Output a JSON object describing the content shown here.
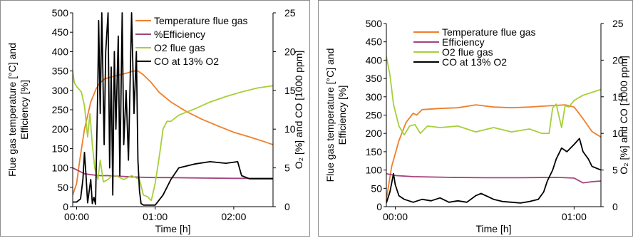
{
  "chart_data": [
    {
      "type": "line",
      "xlabel": "Time [h]",
      "ylabel_left": [
        "Flue gas temperature [°C] and",
        "Efficiency [%]"
      ],
      "ylabel_right": "O₂ [%] and CO [1000 ppm]",
      "xlim": [
        -0.05,
        2.5
      ],
      "ylim_left": [
        0,
        500
      ],
      "ylim_right": [
        0,
        25
      ],
      "x_ticks": [
        {
          "value": 0,
          "label": "00:00"
        },
        {
          "value": 1,
          "label": "01:00"
        },
        {
          "value": 2,
          "label": "02:00"
        }
      ],
      "yticks_left": [
        0,
        50,
        100,
        150,
        200,
        250,
        300,
        350,
        400,
        450,
        500
      ],
      "yticks_right": [
        0,
        5,
        10,
        15,
        20,
        25
      ],
      "legend_position": "top-right",
      "series": [
        {
          "name": "Temperature flue gas",
          "color": "#f07f2a",
          "axis": "left",
          "points": [
            [
              -0.05,
              30
            ],
            [
              0,
              60
            ],
            [
              0.04,
              120
            ],
            [
              0.1,
              200
            ],
            [
              0.18,
              270
            ],
            [
              0.25,
              305
            ],
            [
              0.3,
              320
            ],
            [
              0.36,
              330
            ],
            [
              0.45,
              335
            ],
            [
              0.55,
              340
            ],
            [
              0.65,
              345
            ],
            [
              0.72,
              350
            ],
            [
              0.78,
              350
            ],
            [
              0.85,
              340
            ],
            [
              0.95,
              320
            ],
            [
              1.05,
              295
            ],
            [
              1.2,
              270
            ],
            [
              1.4,
              245
            ],
            [
              1.6,
              225
            ],
            [
              1.8,
              208
            ],
            [
              2.0,
              192
            ],
            [
              2.2,
              180
            ],
            [
              2.4,
              167
            ],
            [
              2.5,
              160
            ]
          ]
        },
        {
          "name": "%Efficiency",
          "color": "#a3447e",
          "axis": "left",
          "points": [
            [
              -0.05,
              100
            ],
            [
              0,
              95
            ],
            [
              0.05,
              90
            ],
            [
              0.1,
              85
            ],
            [
              0.2,
              82
            ],
            [
              0.3,
              80
            ],
            [
              0.4,
              80
            ],
            [
              0.6,
              78
            ],
            [
              0.8,
              76
            ],
            [
              1.0,
              75
            ],
            [
              1.2,
              75
            ],
            [
              1.5,
              74
            ],
            [
              2.0,
              73
            ],
            [
              2.5,
              73
            ]
          ]
        },
        {
          "name": "O2 flue gas",
          "color": "#a6cf3a",
          "axis": "right",
          "points": [
            [
              -0.05,
              17.5
            ],
            [
              -0.03,
              16
            ],
            [
              0,
              15.5
            ],
            [
              0.06,
              14.8
            ],
            [
              0.1,
              13
            ],
            [
              0.14,
              9
            ],
            [
              0.17,
              12
            ],
            [
              0.2,
              8
            ],
            [
              0.23,
              5
            ],
            [
              0.27,
              3.5
            ],
            [
              0.3,
              6
            ],
            [
              0.34,
              3.2
            ],
            [
              0.4,
              3.5
            ],
            [
              0.45,
              4
            ],
            [
              0.5,
              4
            ],
            [
              0.6,
              3.5
            ],
            [
              0.7,
              4
            ],
            [
              0.8,
              3.5
            ],
            [
              0.85,
              1.5
            ],
            [
              0.9,
              1.3
            ],
            [
              0.95,
              0.8
            ],
            [
              1.0,
              3
            ],
            [
              1.03,
              5
            ],
            [
              1.06,
              7
            ],
            [
              1.1,
              10
            ],
            [
              1.15,
              11
            ],
            [
              1.2,
              11
            ],
            [
              1.3,
              11.8
            ],
            [
              1.5,
              12.6
            ],
            [
              1.7,
              13.5
            ],
            [
              1.9,
              14.2
            ],
            [
              2.1,
              14.8
            ],
            [
              2.3,
              15.3
            ],
            [
              2.5,
              15.6
            ]
          ]
        },
        {
          "name": "CO at 13% O2",
          "color": "#000000",
          "axis": "right",
          "points": [
            [
              -0.05,
              0.6
            ],
            [
              0,
              0.6
            ],
            [
              0.05,
              1
            ],
            [
              0.08,
              3.5
            ],
            [
              0.1,
              7
            ],
            [
              0.12,
              4
            ],
            [
              0.14,
              0.5
            ],
            [
              0.16,
              2
            ],
            [
              0.18,
              3.5
            ],
            [
              0.2,
              0.4
            ],
            [
              0.22,
              1.2
            ],
            [
              0.24,
              0.3
            ],
            [
              0.27,
              16
            ],
            [
              0.28,
              24
            ],
            [
              0.3,
              12
            ],
            [
              0.32,
              25
            ],
            [
              0.35,
              8
            ],
            [
              0.37,
              20
            ],
            [
              0.4,
              25
            ],
            [
              0.42,
              5
            ],
            [
              0.44,
              18
            ],
            [
              0.46,
              1.5
            ],
            [
              0.48,
              20
            ],
            [
              0.5,
              10
            ],
            [
              0.53,
              22
            ],
            [
              0.55,
              4
            ],
            [
              0.58,
              25
            ],
            [
              0.6,
              8
            ],
            [
              0.63,
              15
            ],
            [
              0.66,
              6
            ],
            [
              0.7,
              25
            ],
            [
              0.73,
              12
            ],
            [
              0.76,
              20
            ],
            [
              0.78,
              6
            ],
            [
              0.8,
              2
            ],
            [
              0.82,
              0.4
            ],
            [
              0.85,
              0.2
            ],
            [
              1.0,
              0.2
            ],
            [
              1.1,
              1.5
            ],
            [
              1.2,
              3.5
            ],
            [
              1.3,
              5
            ],
            [
              1.5,
              5.5
            ],
            [
              1.7,
              5.8
            ],
            [
              1.9,
              5.6
            ],
            [
              2.05,
              5.8
            ],
            [
              2.1,
              4
            ],
            [
              2.2,
              3.6
            ],
            [
              2.5,
              3.6
            ]
          ]
        }
      ]
    },
    {
      "type": "line",
      "xlabel": "Time [h]",
      "ylabel_left": [
        "Flue gas temperature [°C] and",
        "Efficiency [%]"
      ],
      "ylabel_right": "O₂ [%] and CO [1000 ppm]",
      "xlim": [
        -0.05,
        1.15
      ],
      "ylim_left": [
        0,
        500
      ],
      "ylim_right": [
        0,
        25
      ],
      "x_ticks": [
        {
          "value": 0,
          "label": "00:00"
        },
        {
          "value": 1,
          "label": "01:00"
        }
      ],
      "yticks_left": [
        0,
        50,
        100,
        150,
        200,
        250,
        300,
        350,
        400,
        450,
        500
      ],
      "yticks_right": [
        0,
        5,
        10,
        15,
        20,
        25
      ],
      "legend_position": "top-left",
      "series": [
        {
          "name": "Temperature flue gas",
          "color": "#f07f2a",
          "axis": "left",
          "points": [
            [
              -0.05,
              20
            ],
            [
              -0.02,
              110
            ],
            [
              0.02,
              180
            ],
            [
              0.06,
              230
            ],
            [
              0.1,
              255
            ],
            [
              0.12,
              250
            ],
            [
              0.15,
              265
            ],
            [
              0.25,
              268
            ],
            [
              0.35,
              270
            ],
            [
              0.45,
              278
            ],
            [
              0.55,
              272
            ],
            [
              0.65,
              270
            ],
            [
              0.75,
              272
            ],
            [
              0.85,
              275
            ],
            [
              0.95,
              278
            ],
            [
              1.0,
              272
            ],
            [
              1.05,
              240
            ],
            [
              1.1,
              205
            ],
            [
              1.15,
              190
            ]
          ]
        },
        {
          "name": "Efficiency",
          "color": "#a3447e",
          "axis": "left",
          "points": [
            [
              -0.05,
              90
            ],
            [
              0,
              85
            ],
            [
              0.1,
              82
            ],
            [
              0.3,
              80
            ],
            [
              0.5,
              79
            ],
            [
              0.7,
              79
            ],
            [
              0.9,
              80
            ],
            [
              1.0,
              78
            ],
            [
              1.05,
              65
            ],
            [
              1.1,
              68
            ],
            [
              1.15,
              70
            ]
          ]
        },
        {
          "name": "O2 flue gas",
          "color": "#a6cf3a",
          "axis": "right",
          "points": [
            [
              -0.05,
              20.5
            ],
            [
              -0.03,
              18
            ],
            [
              -0.01,
              14
            ],
            [
              0.02,
              11
            ],
            [
              0.05,
              9.8
            ],
            [
              0.08,
              11
            ],
            [
              0.11,
              11.2
            ],
            [
              0.14,
              10
            ],
            [
              0.18,
              11
            ],
            [
              0.25,
              10.8
            ],
            [
              0.35,
              11
            ],
            [
              0.45,
              10.2
            ],
            [
              0.55,
              10.8
            ],
            [
              0.65,
              10.2
            ],
            [
              0.75,
              10.6
            ],
            [
              0.82,
              10
            ],
            [
              0.86,
              10
            ],
            [
              0.88,
              13.5
            ],
            [
              0.9,
              14
            ],
            [
              0.93,
              10.8
            ],
            [
              0.95,
              13.8
            ],
            [
              0.97,
              13.6
            ],
            [
              1.0,
              14.5
            ],
            [
              1.05,
              15.2
            ],
            [
              1.1,
              15.6
            ],
            [
              1.15,
              16
            ]
          ]
        },
        {
          "name": "CO at 13% O2",
          "color": "#000000",
          "axis": "right",
          "points": [
            [
              -0.05,
              0.5
            ],
            [
              -0.03,
              2
            ],
            [
              -0.01,
              4.5
            ],
            [
              0,
              3
            ],
            [
              0.02,
              1.5
            ],
            [
              0.05,
              1
            ],
            [
              0.1,
              0.6
            ],
            [
              0.15,
              1
            ],
            [
              0.2,
              0.8
            ],
            [
              0.25,
              1.2
            ],
            [
              0.3,
              0.6
            ],
            [
              0.35,
              0.8
            ],
            [
              0.4,
              0.6
            ],
            [
              0.45,
              1.5
            ],
            [
              0.48,
              1.8
            ],
            [
              0.55,
              1
            ],
            [
              0.6,
              0.7
            ],
            [
              0.65,
              0.6
            ],
            [
              0.7,
              0.5
            ],
            [
              0.75,
              0.7
            ],
            [
              0.8,
              1
            ],
            [
              0.83,
              2
            ],
            [
              0.85,
              3.5
            ],
            [
              0.88,
              5
            ],
            [
              0.9,
              6.5
            ],
            [
              0.93,
              8
            ],
            [
              0.96,
              7.5
            ],
            [
              0.98,
              8
            ],
            [
              1.0,
              8.5
            ],
            [
              1.03,
              9.3
            ],
            [
              1.05,
              7.5
            ],
            [
              1.08,
              6.5
            ],
            [
              1.1,
              5.5
            ],
            [
              1.15,
              5
            ]
          ]
        }
      ]
    }
  ]
}
